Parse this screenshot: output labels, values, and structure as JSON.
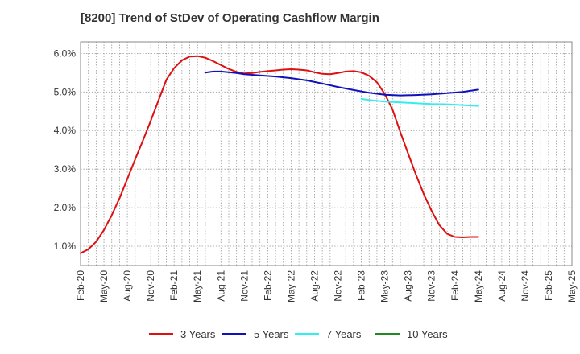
{
  "chart_data": {
    "type": "line",
    "title": "[8200]  Trend of StDev of Operating Cashflow Margin",
    "xlabel": "",
    "ylabel": "",
    "x_categories": [
      "Feb-20",
      "May-20",
      "Aug-20",
      "Nov-20",
      "Feb-21",
      "May-21",
      "Aug-21",
      "Nov-21",
      "Feb-22",
      "May-22",
      "Aug-22",
      "Nov-22",
      "Feb-23",
      "May-23",
      "Aug-23",
      "Nov-23",
      "Feb-24",
      "May-24",
      "Aug-24",
      "Nov-24",
      "Feb-25",
      "May-25"
    ],
    "y_ticks": [
      "1.0%",
      "2.0%",
      "3.0%",
      "4.0%",
      "5.0%",
      "6.0%"
    ],
    "y_tick_values": [
      1.0,
      2.0,
      3.0,
      4.0,
      5.0,
      6.0
    ],
    "ylim": [
      0.5,
      6.3
    ],
    "grid": true,
    "legend_position": "bottom",
    "series": [
      {
        "name": "3 Years",
        "color": "#dd1111",
        "points": [
          [
            0,
            0.82
          ],
          [
            0.33,
            0.92
          ],
          [
            0.67,
            1.12
          ],
          [
            1,
            1.42
          ],
          [
            1.33,
            1.8
          ],
          [
            1.67,
            2.25
          ],
          [
            2,
            2.75
          ],
          [
            2.33,
            3.25
          ],
          [
            2.67,
            3.75
          ],
          [
            3,
            4.25
          ],
          [
            3.33,
            4.78
          ],
          [
            3.67,
            5.32
          ],
          [
            4,
            5.62
          ],
          [
            4.33,
            5.82
          ],
          [
            4.67,
            5.92
          ],
          [
            5,
            5.93
          ],
          [
            5.33,
            5.89
          ],
          [
            5.67,
            5.8
          ],
          [
            6,
            5.7
          ],
          [
            6.33,
            5.6
          ],
          [
            6.67,
            5.52
          ],
          [
            7,
            5.48
          ],
          [
            7.33,
            5.49
          ],
          [
            7.67,
            5.52
          ],
          [
            8,
            5.54
          ],
          [
            8.33,
            5.56
          ],
          [
            8.67,
            5.58
          ],
          [
            9,
            5.59
          ],
          [
            9.33,
            5.58
          ],
          [
            9.67,
            5.56
          ],
          [
            10,
            5.51
          ],
          [
            10.33,
            5.47
          ],
          [
            10.67,
            5.46
          ],
          [
            11,
            5.49
          ],
          [
            11.33,
            5.53
          ],
          [
            11.67,
            5.54
          ],
          [
            12,
            5.51
          ],
          [
            12.33,
            5.42
          ],
          [
            12.67,
            5.25
          ],
          [
            13,
            4.95
          ],
          [
            13.33,
            4.55
          ],
          [
            13.67,
            3.95
          ],
          [
            14,
            3.4
          ],
          [
            14.33,
            2.86
          ],
          [
            14.67,
            2.35
          ],
          [
            15,
            1.92
          ],
          [
            15.33,
            1.55
          ],
          [
            15.67,
            1.32
          ],
          [
            16,
            1.24
          ],
          [
            16.33,
            1.23
          ],
          [
            16.67,
            1.24
          ],
          [
            17,
            1.24
          ]
        ]
      },
      {
        "name": "5 Years",
        "color": "#1111bb",
        "points": [
          [
            5.33,
            5.5
          ],
          [
            5.67,
            5.53
          ],
          [
            6,
            5.53
          ],
          [
            6.67,
            5.49
          ],
          [
            7,
            5.46
          ],
          [
            7.67,
            5.43
          ],
          [
            8.33,
            5.4
          ],
          [
            9,
            5.36
          ],
          [
            9.67,
            5.3
          ],
          [
            10.33,
            5.22
          ],
          [
            11,
            5.13
          ],
          [
            11.67,
            5.05
          ],
          [
            12.33,
            4.98
          ],
          [
            13,
            4.93
          ],
          [
            13.67,
            4.91
          ],
          [
            14.33,
            4.92
          ],
          [
            15,
            4.94
          ],
          [
            15.67,
            4.97
          ],
          [
            16.33,
            5.0
          ],
          [
            17,
            5.06
          ]
        ]
      },
      {
        "name": "7 Years",
        "color": "#33eeee",
        "points": [
          [
            12,
            4.82
          ],
          [
            12.33,
            4.79
          ],
          [
            12.67,
            4.77
          ],
          [
            13,
            4.75
          ],
          [
            13.67,
            4.73
          ],
          [
            14.33,
            4.71
          ],
          [
            15,
            4.69
          ],
          [
            15.67,
            4.68
          ],
          [
            16.33,
            4.66
          ],
          [
            17,
            4.64
          ]
        ]
      },
      {
        "name": "10 Years",
        "color": "#228822",
        "points": []
      }
    ]
  }
}
